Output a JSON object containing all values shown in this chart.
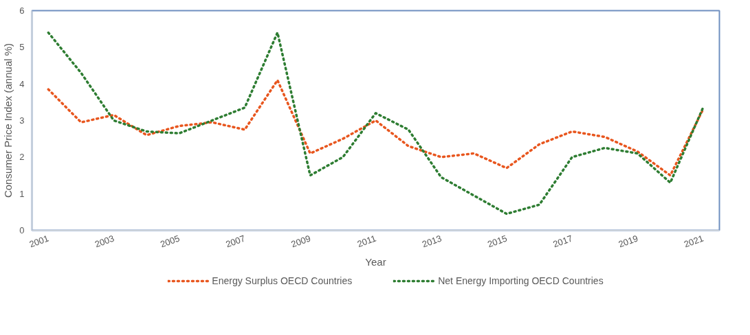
{
  "chart_data": {
    "type": "line",
    "xlabel": "Year",
    "ylabel": "Consumer Price Index (annual %)",
    "x": [
      2001,
      2002,
      2003,
      2004,
      2005,
      2006,
      2007,
      2008,
      2009,
      2010,
      2011,
      2012,
      2013,
      2014,
      2015,
      2016,
      2017,
      2018,
      2019,
      2020,
      2021
    ],
    "series": [
      {
        "name": "Energy Surplus OECD Countries",
        "color": "#e8561e",
        "values": [
          3.85,
          2.95,
          3.15,
          2.6,
          2.85,
          2.95,
          2.75,
          4.1,
          2.1,
          2.5,
          3.0,
          2.3,
          2.0,
          2.1,
          1.7,
          2.35,
          2.7,
          2.55,
          2.15,
          1.5,
          3.3
        ]
      },
      {
        "name": "Net Energy Importing OECD Countries",
        "color": "#2e7d32",
        "values": [
          5.4,
          4.3,
          3.0,
          2.7,
          2.65,
          3.0,
          3.35,
          5.4,
          1.5,
          2.0,
          3.2,
          2.75,
          1.45,
          0.95,
          0.45,
          0.7,
          2.0,
          2.25,
          2.1,
          1.3,
          3.35
        ]
      }
    ],
    "xlim": [
      2000.5,
      2021.5
    ],
    "xticks": [
      2001,
      2003,
      2005,
      2007,
      2009,
      2011,
      2013,
      2015,
      2017,
      2019,
      2021
    ],
    "ylim": [
      0,
      6
    ],
    "yticks": [
      0,
      1,
      2,
      3,
      4,
      5,
      6
    ],
    "grid": false,
    "legend": "bottom",
    "line_style": "dotted",
    "marker": "none"
  }
}
